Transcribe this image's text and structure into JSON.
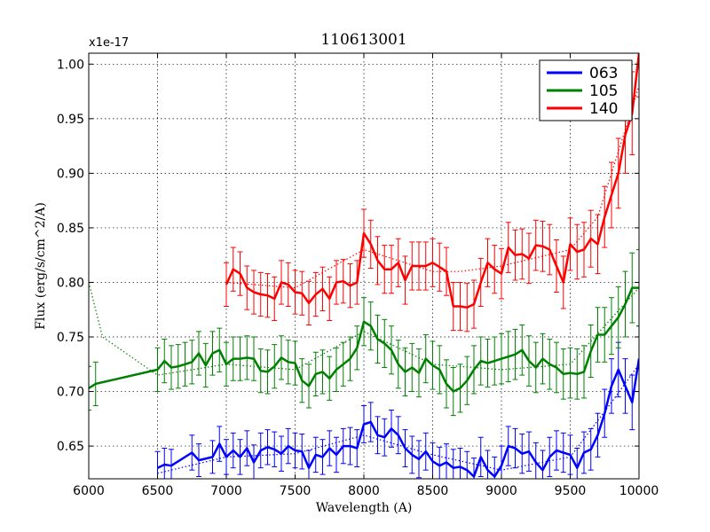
{
  "chart_data": {
    "type": "line",
    "title": "110613001",
    "xlabel": "Wavelength (A)",
    "ylabel": "Flux (erg/s/cm^2/A)",
    "y_scale_label": "x1e-17",
    "xlim": [
      6000,
      10000
    ],
    "ylim": [
      0.62,
      1.01
    ],
    "grid": true,
    "legend_position": "top-right",
    "x_ticks": [
      6000,
      6500,
      7000,
      7500,
      8000,
      8500,
      9000,
      9500,
      10000
    ],
    "x_tick_labels": [
      "6000",
      "6500",
      "7000",
      "7500",
      "8000",
      "8500",
      "9000",
      "9500",
      "10000"
    ],
    "y_ticks": [
      0.65,
      0.7,
      0.75,
      0.8,
      0.85,
      0.9,
      0.95,
      1.0
    ],
    "y_tick_labels": [
      "0.65",
      "0.70",
      "0.75",
      "0.80",
      "0.85",
      "0.90",
      "0.95",
      "1.00"
    ],
    "series": [
      {
        "name": "063",
        "color": "#0000ff",
        "x": [
          6500,
          6550,
          6600,
          6750,
          6800,
          6900,
          6950,
          7000,
          7050,
          7100,
          7150,
          7200,
          7250,
          7300,
          7350,
          7400,
          7450,
          7500,
          7550,
          7600,
          7650,
          7700,
          7750,
          7800,
          7850,
          7900,
          7950,
          8000,
          8050,
          8100,
          8150,
          8200,
          8250,
          8300,
          8350,
          8400,
          8450,
          8500,
          8550,
          8600,
          8650,
          8700,
          8750,
          8800,
          8850,
          8900,
          8950,
          9000,
          9050,
          9100,
          9150,
          9200,
          9250,
          9300,
          9350,
          9400,
          9450,
          9500,
          9550,
          9600,
          9650,
          9700,
          9750,
          9800,
          9850,
          9900,
          9950,
          10000
        ],
        "values": [
          0.63,
          0.633,
          0.632,
          0.644,
          0.637,
          0.64,
          0.652,
          0.64,
          0.646,
          0.64,
          0.648,
          0.635,
          0.646,
          0.649,
          0.647,
          0.643,
          0.65,
          0.646,
          0.645,
          0.63,
          0.642,
          0.64,
          0.648,
          0.642,
          0.65,
          0.65,
          0.648,
          0.67,
          0.672,
          0.66,
          0.658,
          0.666,
          0.66,
          0.648,
          0.642,
          0.638,
          0.645,
          0.636,
          0.632,
          0.635,
          0.63,
          0.631,
          0.628,
          0.622,
          0.64,
          0.628,
          0.622,
          0.632,
          0.65,
          0.648,
          0.643,
          0.645,
          0.635,
          0.628,
          0.64,
          0.646,
          0.644,
          0.642,
          0.63,
          0.644,
          0.647,
          0.66,
          0.68,
          0.705,
          0.72,
          0.705,
          0.69,
          0.73
        ],
        "errors": [
          0.015,
          0.015,
          0.015,
          0.016,
          0.015,
          0.015,
          0.016,
          0.016,
          0.016,
          0.016,
          0.016,
          0.016,
          0.016,
          0.016,
          0.016,
          0.016,
          0.016,
          0.016,
          0.016,
          0.016,
          0.016,
          0.016,
          0.016,
          0.016,
          0.016,
          0.017,
          0.017,
          0.017,
          0.018,
          0.017,
          0.017,
          0.017,
          0.017,
          0.017,
          0.017,
          0.017,
          0.017,
          0.017,
          0.017,
          0.017,
          0.017,
          0.017,
          0.017,
          0.017,
          0.018,
          0.018,
          0.018,
          0.018,
          0.018,
          0.018,
          0.018,
          0.018,
          0.018,
          0.018,
          0.018,
          0.018,
          0.018,
          0.018,
          0.018,
          0.019,
          0.019,
          0.02,
          0.022,
          0.025,
          0.025,
          0.025,
          0.025,
          0.03
        ],
        "dotted_x": [
          6500,
          7000,
          7500,
          8000,
          8500,
          9000,
          9500,
          9800,
          10000
        ],
        "dotted_values": [
          0.625,
          0.64,
          0.643,
          0.66,
          0.642,
          0.628,
          0.64,
          0.69,
          0.725
        ]
      },
      {
        "name": "105",
        "color": "#008000",
        "x": [
          6000,
          6050,
          6500,
          6550,
          6600,
          6650,
          6700,
          6750,
          6800,
          6850,
          6900,
          6950,
          7000,
          7050,
          7100,
          7150,
          7200,
          7250,
          7300,
          7350,
          7400,
          7450,
          7500,
          7550,
          7600,
          7650,
          7700,
          7750,
          7800,
          7850,
          7900,
          7950,
          8000,
          8050,
          8100,
          8150,
          8200,
          8250,
          8300,
          8350,
          8400,
          8450,
          8500,
          8550,
          8600,
          8650,
          8700,
          8750,
          8800,
          8850,
          8900,
          8950,
          9000,
          9050,
          9100,
          9150,
          9200,
          9250,
          9300,
          9350,
          9400,
          9450,
          9500,
          9550,
          9600,
          9650,
          9700,
          9750,
          9800,
          9850,
          9900,
          9950,
          10000
        ],
        "values": [
          0.703,
          0.707,
          0.72,
          0.728,
          0.722,
          0.723,
          0.725,
          0.727,
          0.735,
          0.724,
          0.735,
          0.738,
          0.725,
          0.73,
          0.73,
          0.731,
          0.73,
          0.719,
          0.718,
          0.723,
          0.731,
          0.727,
          0.726,
          0.71,
          0.705,
          0.716,
          0.718,
          0.712,
          0.72,
          0.725,
          0.73,
          0.74,
          0.764,
          0.76,
          0.748,
          0.744,
          0.738,
          0.725,
          0.718,
          0.722,
          0.717,
          0.73,
          0.724,
          0.72,
          0.707,
          0.7,
          0.703,
          0.71,
          0.72,
          0.728,
          0.726,
          0.728,
          0.73,
          0.732,
          0.734,
          0.738,
          0.728,
          0.722,
          0.73,
          0.725,
          0.722,
          0.716,
          0.717,
          0.716,
          0.718,
          0.737,
          0.752,
          0.752,
          0.76,
          0.768,
          0.78,
          0.795,
          0.795
        ],
        "errors": [
          0.02,
          0.02,
          0.02,
          0.02,
          0.02,
          0.02,
          0.02,
          0.02,
          0.02,
          0.02,
          0.02,
          0.02,
          0.02,
          0.02,
          0.02,
          0.02,
          0.02,
          0.02,
          0.02,
          0.02,
          0.02,
          0.02,
          0.02,
          0.02,
          0.02,
          0.02,
          0.02,
          0.02,
          0.02,
          0.02,
          0.02,
          0.02,
          0.022,
          0.022,
          0.022,
          0.022,
          0.022,
          0.022,
          0.022,
          0.022,
          0.022,
          0.022,
          0.022,
          0.022,
          0.022,
          0.022,
          0.022,
          0.022,
          0.022,
          0.022,
          0.022,
          0.022,
          0.023,
          0.023,
          0.023,
          0.023,
          0.023,
          0.023,
          0.023,
          0.023,
          0.023,
          0.023,
          0.023,
          0.023,
          0.024,
          0.024,
          0.025,
          0.025,
          0.026,
          0.028,
          0.03,
          0.032,
          0.035
        ],
        "dotted_x": [
          6000,
          6100,
          6500,
          7000,
          7500,
          8000,
          8500,
          9000,
          9500,
          10000
        ],
        "dotted_values": [
          0.8,
          0.75,
          0.715,
          0.725,
          0.72,
          0.755,
          0.725,
          0.72,
          0.725,
          0.795
        ]
      },
      {
        "name": "140",
        "color": "#ff0000",
        "x": [
          7000,
          7050,
          7100,
          7150,
          7200,
          7250,
          7300,
          7350,
          7400,
          7450,
          7500,
          7550,
          7600,
          7650,
          7700,
          7750,
          7800,
          7850,
          7900,
          7950,
          8000,
          8050,
          8100,
          8150,
          8200,
          8250,
          8300,
          8350,
          8400,
          8450,
          8500,
          8550,
          8600,
          8650,
          8700,
          8750,
          8800,
          8850,
          8900,
          8950,
          9000,
          9050,
          9100,
          9150,
          9200,
          9250,
          9300,
          9350,
          9400,
          9450,
          9500,
          9550,
          9600,
          9650,
          9700,
          9750,
          9800,
          9850,
          9900,
          9950,
          10000
        ],
        "values": [
          0.798,
          0.812,
          0.808,
          0.795,
          0.791,
          0.789,
          0.788,
          0.785,
          0.8,
          0.798,
          0.791,
          0.79,
          0.781,
          0.789,
          0.794,
          0.785,
          0.8,
          0.801,
          0.797,
          0.8,
          0.845,
          0.835,
          0.82,
          0.812,
          0.812,
          0.818,
          0.802,
          0.815,
          0.815,
          0.815,
          0.818,
          0.814,
          0.81,
          0.778,
          0.778,
          0.777,
          0.78,
          0.8,
          0.818,
          0.812,
          0.808,
          0.832,
          0.825,
          0.826,
          0.822,
          0.834,
          0.833,
          0.83,
          0.815,
          0.8,
          0.835,
          0.828,
          0.83,
          0.84,
          0.835,
          0.86,
          0.88,
          0.9,
          0.935,
          0.955,
          1.01
        ],
        "errors": [
          0.02,
          0.02,
          0.02,
          0.02,
          0.02,
          0.02,
          0.02,
          0.02,
          0.02,
          0.02,
          0.02,
          0.02,
          0.02,
          0.02,
          0.02,
          0.02,
          0.02,
          0.02,
          0.02,
          0.02,
          0.022,
          0.022,
          0.022,
          0.022,
          0.022,
          0.022,
          0.022,
          0.022,
          0.022,
          0.022,
          0.022,
          0.022,
          0.022,
          0.022,
          0.022,
          0.022,
          0.022,
          0.022,
          0.022,
          0.022,
          0.023,
          0.023,
          0.023,
          0.023,
          0.023,
          0.023,
          0.023,
          0.023,
          0.024,
          0.024,
          0.024,
          0.025,
          0.025,
          0.026,
          0.027,
          0.028,
          0.03,
          0.032,
          0.035,
          0.038,
          0.04
        ],
        "dotted_x": [
          7000,
          7500,
          8000,
          8500,
          8700,
          9000,
          9500,
          9700,
          10000
        ],
        "dotted_values": [
          0.8,
          0.795,
          0.83,
          0.81,
          0.81,
          0.815,
          0.83,
          0.86,
          0.98
        ]
      }
    ]
  }
}
